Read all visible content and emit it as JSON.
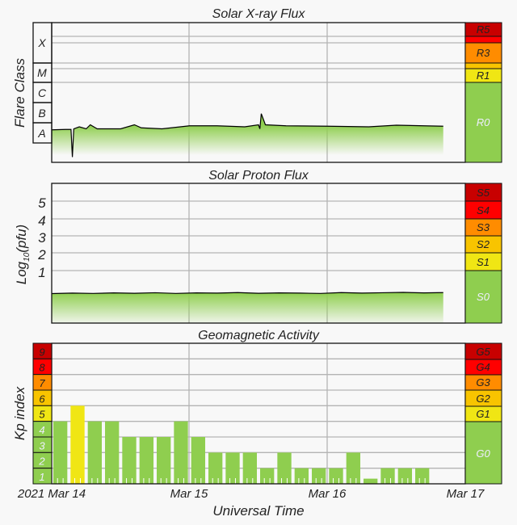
{
  "chart_data": [
    {
      "type": "area",
      "title": "Solar X-ray Flux",
      "ylabel": "Flare Class",
      "y_class_labels": [
        "X",
        "M",
        "C",
        "B",
        "A"
      ],
      "y_units": "log10 W/m^2",
      "ylim_log10": [
        -8.96,
        -3
      ],
      "x_days_since_2021_03_14": [
        0,
        0.1,
        0.14,
        0.15,
        0.16,
        0.2,
        0.25,
        0.28,
        0.33,
        0.5,
        0.6,
        0.65,
        0.8,
        1.0,
        1.2,
        1.4,
        1.5,
        1.51,
        1.52,
        1.55,
        1.7,
        2.0,
        2.3,
        2.5,
        2.7,
        2.84
      ],
      "log10_flux": [
        -7.35,
        -7.33,
        -7.33,
        -8.7,
        -7.3,
        -7.2,
        -7.3,
        -7.1,
        -7.3,
        -7.3,
        -7.1,
        -7.25,
        -7.3,
        -7.15,
        -7.15,
        -7.2,
        -7.1,
        -7.3,
        -6.55,
        -7.1,
        -7.15,
        -7.17,
        -7.2,
        -7.12,
        -7.15,
        -7.17
      ],
      "scale_labels": [
        "R5",
        "R3",
        "R1",
        "R0"
      ],
      "scale_colors": [
        "#c80000",
        "#ff0000",
        "#ff8c00",
        "#f8c400",
        "#f0e614",
        "#8fce4f"
      ],
      "line_color": "#000000",
      "fill_color": "#8fce4f"
    },
    {
      "type": "area",
      "title": "Solar Proton Flux",
      "ylabel_main": "Log",
      "ylabel_sub": "10",
      "ylabel_tail": "(pfu)",
      "ytick_labels": [
        "5",
        "4",
        "3",
        "2",
        "1"
      ],
      "ylim_log10": [
        -2,
        6.5
      ],
      "x_days_since_2021_03_14": [
        0,
        0.15,
        0.3,
        0.45,
        0.6,
        0.75,
        0.9,
        1.05,
        1.2,
        1.35,
        1.5,
        1.65,
        1.8,
        1.95,
        2.1,
        2.25,
        2.4,
        2.55,
        2.7,
        2.84
      ],
      "log10_pfu": [
        -0.28,
        -0.25,
        -0.27,
        -0.24,
        -0.26,
        -0.23,
        -0.27,
        -0.24,
        -0.25,
        -0.22,
        -0.26,
        -0.24,
        -0.25,
        -0.27,
        -0.22,
        -0.25,
        -0.23,
        -0.21,
        -0.24,
        -0.22
      ],
      "scale_labels": [
        "S5",
        "S4",
        "S3",
        "S2",
        "S1",
        "S0"
      ],
      "scale_colors": [
        "#c80000",
        "#ff0000",
        "#ff8c00",
        "#f8c400",
        "#f0e614",
        "#8fce4f"
      ]
    },
    {
      "type": "bar",
      "title": "Geomagnetic Activity",
      "ylabel": "Kp index",
      "ytick_labels": [
        "9",
        "8",
        "7",
        "6",
        "5",
        "4",
        "3",
        "2",
        "1"
      ],
      "ylim": [
        0,
        9
      ],
      "bar_interval_hours": 3,
      "values": [
        4,
        5,
        4,
        4,
        3,
        3,
        3,
        4,
        3,
        2,
        2,
        2,
        1,
        2,
        1,
        1,
        1,
        2,
        0.33,
        1,
        1,
        1
      ],
      "bar_color_normal": "#8fce4f",
      "bar_color_storm": "#f0e614",
      "scale_labels": [
        "G5",
        "G4",
        "G3",
        "G2",
        "G1",
        "G0"
      ],
      "scale_colors": [
        "#c80000",
        "#ff0000",
        "#ff8c00",
        "#f8c400",
        "#f0e614",
        "#8fce4f"
      ]
    }
  ],
  "x_axis": {
    "tick_labels": [
      "2021 Mar 14",
      "Mar 15",
      "Mar 16",
      "Mar 17"
    ],
    "xlabel": "Universal Time"
  }
}
